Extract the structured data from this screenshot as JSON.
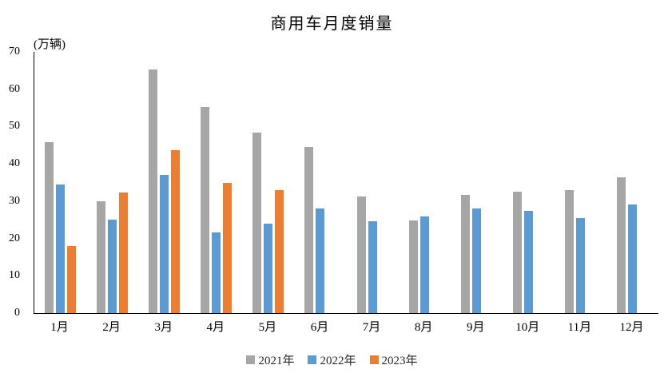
{
  "chart_data": {
    "type": "bar",
    "title": "商用车月度销量",
    "ylabel": "(万辆)",
    "xlabel": "",
    "categories": [
      "1月",
      "2月",
      "3月",
      "4月",
      "5月",
      "6月",
      "7月",
      "8月",
      "9月",
      "10月",
      "11月",
      "12月"
    ],
    "series": [
      {
        "name": "2021年",
        "color": "#A6A6A6",
        "values": [
          45.9,
          29.9,
          65.2,
          55.2,
          48.3,
          44.6,
          31.2,
          24.8,
          31.7,
          32.6,
          33.0,
          36.4
        ]
      },
      {
        "name": "2022年",
        "color": "#5B9BD5",
        "values": [
          34.5,
          25.0,
          37.0,
          21.6,
          23.9,
          28.1,
          24.6,
          25.9,
          28.0,
          27.4,
          25.4,
          29.2
        ]
      },
      {
        "name": "2023年",
        "color": "#ED7D31",
        "values": [
          18.0,
          32.4,
          43.7,
          34.9,
          33.0,
          null,
          null,
          null,
          null,
          null,
          null,
          null
        ]
      }
    ],
    "ylim": [
      0,
      70
    ],
    "yticks": [
      0,
      10,
      20,
      30,
      40,
      50,
      60,
      70
    ],
    "grid": false,
    "legend_position": "bottom",
    "axis_color": "#000000"
  }
}
